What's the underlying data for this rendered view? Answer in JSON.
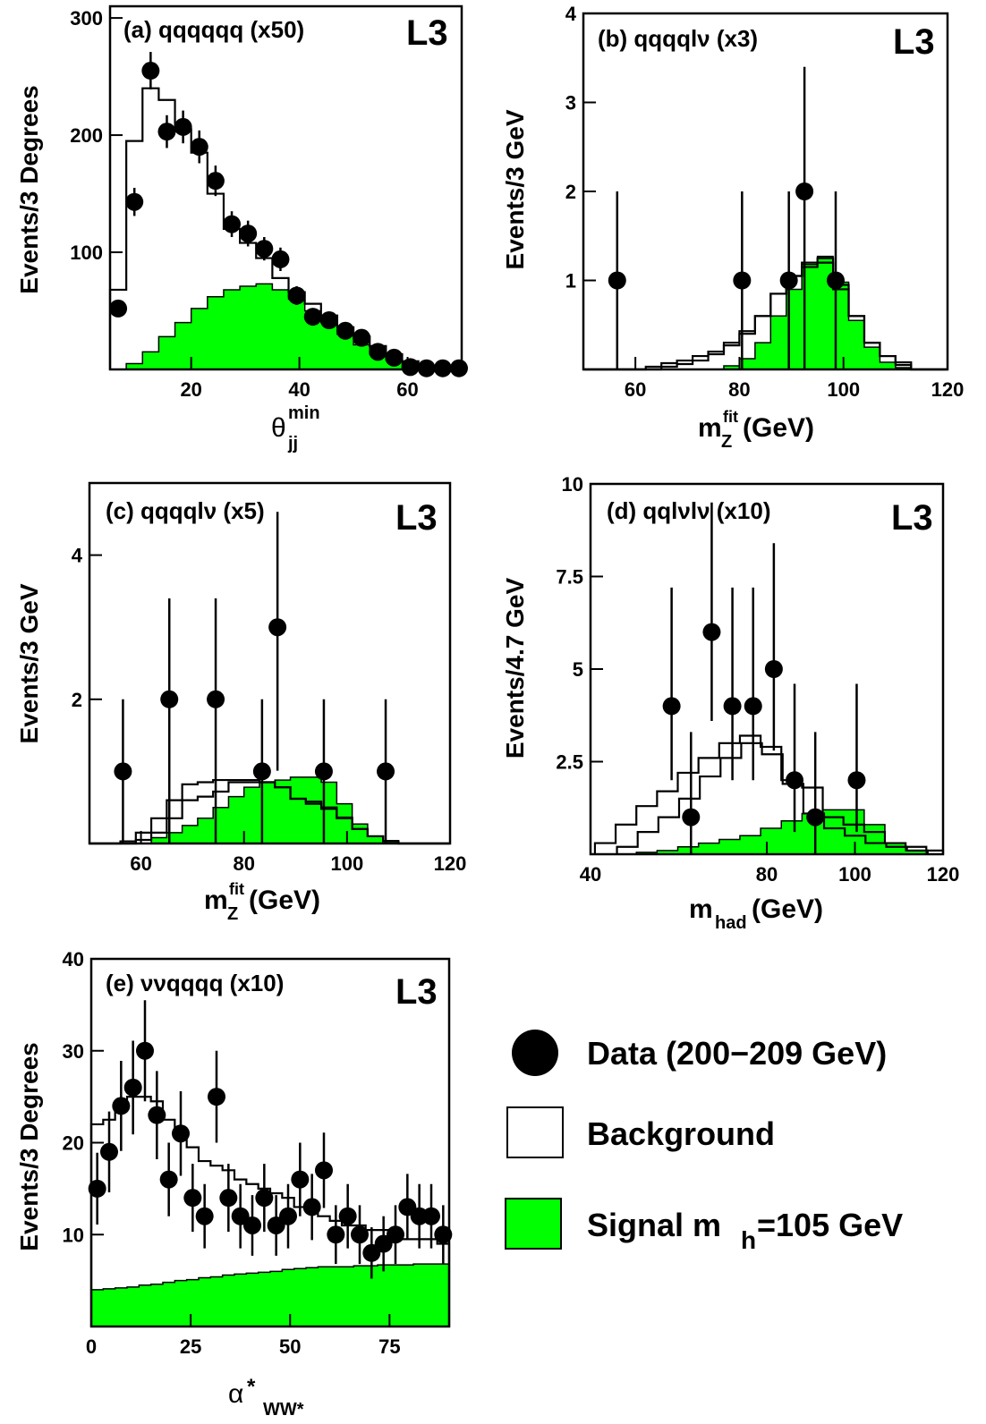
{
  "colors": {
    "signal_fill": "#00ff00",
    "background_line": "#000000",
    "data_marker": "#000000"
  },
  "chart_data": [
    {
      "id": "a",
      "type": "histogram",
      "title": "(a) qqqqqq (x50)",
      "experiment_label": "L3",
      "xlabel": {
        "main": "θ",
        "sup": "min",
        "sub": "jj"
      },
      "ylabel": "Events/3 Degrees",
      "xlim": [
        5,
        70
      ],
      "ylim": [
        0,
        310
      ],
      "xticks": [
        20,
        40,
        60
      ],
      "yticks": [
        100,
        200,
        300
      ],
      "bin_width": 3,
      "background": {
        "edges_start": 5,
        "values": [
          68,
          195,
          240,
          230,
          205,
          185,
          150,
          120,
          108,
          95,
          78,
          66,
          56,
          46,
          36,
          28,
          20,
          13,
          7,
          3,
          1,
          0
        ]
      },
      "signal": {
        "edges_start": 5,
        "values": [
          0,
          5,
          15,
          28,
          40,
          52,
          62,
          68,
          71,
          73,
          68,
          60,
          50,
          40,
          30,
          21,
          13,
          8,
          4,
          2,
          1,
          0
        ]
      },
      "data": {
        "x": [
          6.5,
          9.5,
          12.5,
          15.5,
          18.5,
          21.5,
          24.5,
          27.5,
          30.5,
          33.5,
          36.5,
          39.5,
          42.5,
          45.5,
          48.5,
          51.5,
          54.5,
          57.5,
          60.5,
          63.5,
          66.5,
          69.5
        ],
        "y": [
          52,
          143,
          255,
          203,
          207,
          190,
          161,
          124,
          116,
          103,
          94,
          63,
          45,
          42,
          33,
          27,
          15,
          10,
          2,
          1,
          1,
          1
        ],
        "err": [
          7,
          12,
          16,
          14,
          14,
          14,
          13,
          11,
          11,
          10,
          10,
          8,
          7,
          6,
          6,
          5,
          4,
          3,
          1.4,
          1,
          1,
          1
        ]
      }
    },
    {
      "id": "b",
      "type": "histogram",
      "title": "(b) qqqqlν (x3)",
      "experiment_label": "L3",
      "xlabel": {
        "main": "m",
        "sup": "fit",
        "sub": "Z",
        "unit": " (GeV)"
      },
      "ylabel": "Events/3 GeV",
      "xlim": [
        50,
        120
      ],
      "ylim": [
        0,
        4
      ],
      "xticks": [
        60,
        80,
        100,
        120
      ],
      "yticks": [
        1,
        2,
        3,
        4
      ],
      "bin_width": 3,
      "background": {
        "edges_start": 50,
        "values": [
          0,
          0,
          0,
          0,
          0.03,
          0.07,
          0.1,
          0.15,
          0.2,
          0.3,
          0.43,
          0.6,
          0.85,
          1.05,
          1.15,
          1.25,
          0.95,
          0.6,
          0.3,
          0.15,
          0.08,
          0,
          0,
          0
        ]
      },
      "background2": {
        "edges_start": 50,
        "values": [
          0,
          0,
          0,
          0,
          0,
          0.03,
          0.06,
          0.1,
          0.17,
          0.27,
          0.4,
          0.6,
          0.85,
          1.05,
          1.2,
          1.2,
          0.9,
          0.6,
          0.3,
          0.15,
          0.05,
          0,
          0,
          0
        ]
      },
      "signal": {
        "edges_start": 50,
        "values": [
          0,
          0,
          0,
          0,
          0,
          0,
          0,
          0,
          0,
          0.04,
          0.12,
          0.3,
          0.6,
          0.9,
          1.18,
          1.27,
          0.98,
          0.55,
          0.25,
          0.08,
          0.02,
          0,
          0,
          0
        ]
      },
      "data": {
        "x": [
          56.5,
          80.5,
          89.5,
          92.5,
          98.5
        ],
        "y": [
          1,
          1,
          1,
          2,
          1
        ],
        "err_lo": [
          0.99,
          0.99,
          0.99,
          1.99,
          0.99
        ],
        "err_hi": [
          1,
          1,
          1,
          1.4,
          1
        ]
      }
    },
    {
      "id": "c",
      "type": "histogram",
      "title": "(c) qqqqlν (x5)",
      "experiment_label": "L3",
      "xlabel": {
        "main": "m",
        "sup": "fit",
        "sub": "Z",
        "unit": " (GeV)"
      },
      "ylabel": "Events/3 GeV",
      "xlim": [
        50,
        120
      ],
      "ylim": [
        0,
        5
      ],
      "xticks": [
        60,
        80,
        100,
        120
      ],
      "yticks": [
        2,
        4
      ],
      "bin_width": 3,
      "background": {
        "edges_start": 50,
        "values": [
          0,
          0,
          0.03,
          0.15,
          0.35,
          0.6,
          0.82,
          0.85,
          0.88,
          0.88,
          0.88,
          0.85,
          0.78,
          0.62,
          0.58,
          0.5,
          0.36,
          0.2,
          0.1,
          0.03,
          0,
          0,
          0,
          0
        ]
      },
      "background2": {
        "edges_start": 50,
        "values": [
          0,
          0,
          0,
          0.05,
          0.15,
          0.35,
          0.6,
          0.65,
          0.72,
          0.85,
          0.85,
          0.85,
          0.78,
          0.62,
          0.55,
          0.48,
          0.35,
          0.2,
          0.1,
          0.03,
          0,
          0,
          0,
          0
        ]
      },
      "signal": {
        "edges_start": 50,
        "values": [
          0,
          0,
          0,
          0,
          0.08,
          0.15,
          0.25,
          0.35,
          0.5,
          0.65,
          0.78,
          0.85,
          0.88,
          0.92,
          0.92,
          0.85,
          0.55,
          0.27,
          0.1,
          0.04,
          0,
          0,
          0,
          0
        ]
      },
      "data": {
        "x": [
          56.5,
          65.5,
          74.5,
          83.5,
          86.5,
          95.5,
          107.5
        ],
        "y": [
          1,
          2,
          2,
          1,
          3,
          1,
          1
        ],
        "err_lo": [
          0.99,
          1.99,
          1.99,
          0.99,
          1.99,
          0.99,
          0.99
        ],
        "err_hi": [
          1,
          1.4,
          1.4,
          1,
          1.6,
          1,
          1
        ]
      }
    },
    {
      "id": "d",
      "type": "histogram",
      "title": "(d) qqlνlν (x10)",
      "experiment_label": "L3",
      "xlabel": {
        "main": "m",
        "sub": "had",
        "unit": " (GeV)"
      },
      "ylabel": "Events/4.7 GeV",
      "xlim": [
        40,
        120
      ],
      "ylim": [
        0,
        10
      ],
      "xticks": [
        40,
        80,
        100,
        120
      ],
      "yticks": [
        2.5,
        5,
        7.5,
        10
      ],
      "bin_width": 4.7,
      "background": {
        "edges_start": 41,
        "values": [
          0.3,
          0.8,
          1.3,
          1.7,
          2.2,
          2.6,
          3.0,
          3.2,
          2.9,
          2.0,
          1.8,
          1.0,
          0.8,
          0.6,
          0.3,
          0.2,
          0.1
        ]
      },
      "background2": {
        "edges_start": 46,
        "values": [
          0.2,
          0.6,
          1.0,
          1.5,
          2.1,
          2.6,
          3.0,
          2.7,
          1.9,
          1.1,
          0.7,
          0.5,
          0.3,
          0.2,
          0.1
        ]
      },
      "signal": {
        "edges_start": 41,
        "values": [
          0,
          0,
          0.05,
          0.1,
          0.2,
          0.3,
          0.4,
          0.5,
          0.7,
          0.9,
          1.1,
          1.2,
          1.2,
          0.8,
          0.3,
          0.1,
          0
        ]
      },
      "data": {
        "x": [
          58.4,
          62.8,
          67.5,
          72.2,
          76.9,
          81.6,
          86.3,
          91.0,
          100.4
        ],
        "y": [
          4,
          1,
          6,
          4,
          4,
          5,
          2,
          1,
          2
        ],
        "err_lo": [
          2,
          0.99,
          2.4,
          2,
          2,
          2.2,
          1.4,
          0.99,
          1.4
        ],
        "err_hi": [
          3.2,
          2.3,
          3.5,
          3.2,
          3.2,
          3.4,
          2.6,
          2.3,
          2.6
        ]
      }
    },
    {
      "id": "e",
      "type": "histogram",
      "title": "(e) ννqqqq (x10)",
      "experiment_label": "L3",
      "xlabel": {
        "main": "α",
        "sup": "*",
        "sub": "WW*"
      },
      "ylabel": "Events/3 Degrees",
      "xlim": [
        0,
        90
      ],
      "ylim": [
        0,
        40
      ],
      "xticks": [
        0,
        25,
        50,
        75
      ],
      "yticks": [
        10,
        20,
        30,
        40
      ],
      "bin_width": 3,
      "background": {
        "edges_start": 0,
        "values": [
          22,
          22.5,
          24,
          25,
          25,
          24.5,
          22.5,
          21,
          19.5,
          18,
          17.5,
          17,
          16,
          15.5,
          15,
          14.5,
          14,
          13,
          12.5,
          12,
          11.5,
          11,
          11,
          10.5,
          10.5,
          10,
          9.5,
          9.5,
          9.5,
          9
        ]
      },
      "signal": {
        "edges_start": 0,
        "values": [
          4,
          4.1,
          4.2,
          4.3,
          4.5,
          4.6,
          4.8,
          5,
          5.1,
          5.3,
          5.4,
          5.6,
          5.7,
          5.8,
          5.9,
          6,
          6.2,
          6.3,
          6.4,
          6.5,
          6.5,
          6.5,
          6.6,
          6.6,
          6.7,
          6.7,
          6.7,
          6.8,
          6.8,
          6.8
        ]
      },
      "data": {
        "x": [
          1.5,
          4.5,
          7.5,
          10.5,
          13.5,
          16.5,
          19.5,
          22.5,
          25.5,
          28.5,
          31.5,
          34.5,
          37.5,
          40.5,
          43.5,
          46.5,
          49.5,
          52.5,
          55.5,
          58.5,
          61.5,
          64.5,
          67.5,
          70.5,
          73.5,
          76.5,
          79.5,
          82.5,
          85.5,
          88.5
        ],
        "y": [
          15,
          19,
          24,
          26,
          30,
          23,
          16,
          21,
          14,
          12,
          25,
          14,
          12,
          11,
          14,
          11,
          12,
          16,
          13,
          17,
          10,
          12,
          10,
          8,
          9,
          10,
          13,
          12,
          12,
          10
        ],
        "err": [
          3.9,
          4.4,
          4.9,
          5.1,
          5.5,
          4.8,
          4.0,
          4.6,
          3.7,
          3.5,
          5.0,
          3.7,
          3.5,
          3.3,
          3.7,
          3.3,
          3.5,
          4.0,
          3.6,
          4.1,
          3.2,
          3.5,
          3.2,
          2.8,
          3.0,
          3.2,
          3.6,
          3.5,
          3.5,
          3.2
        ]
      }
    }
  ],
  "legend": {
    "data": "Data (200−209 GeV)",
    "background": "Background",
    "signal": "Signal m",
    "signal_sub": "h",
    "signal_rest": "=105 GeV"
  }
}
